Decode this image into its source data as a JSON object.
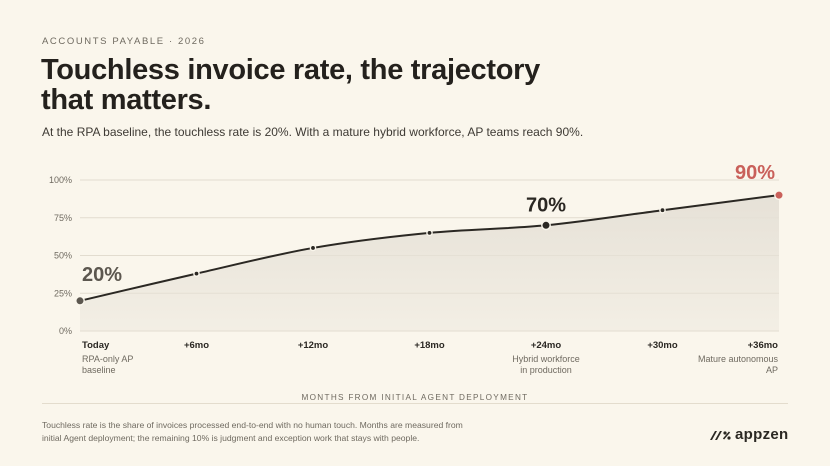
{
  "eyebrow": "ACCOUNTS PAYABLE · 2026",
  "title": "Touchless invoice rate, the trajectory that matters.",
  "subtitle": "At the RPA baseline, the touchless rate is 20%. With a mature hybrid workforce, AP teams reach 90%.",
  "footnote": "Touchless rate is the share of invoices processed end-to-end with no human touch. Months are measured from initial Agent deployment; the remaining 10% is judgment and exception work that stays with people.",
  "logo": {
    "text": "appzen",
    "icon": "appzen-mark-icon"
  },
  "colors": {
    "line": "#2b2823",
    "accent": "#c9605a",
    "callout": "#5c574f",
    "area": "#e6e1d7",
    "grid": "#e2dccf"
  },
  "chart_data": {
    "type": "line",
    "xlabel": "MONTHS FROM INITIAL AGENT DEPLOYMENT",
    "ylabel": "",
    "ylim": [
      0,
      100
    ],
    "yticks": [
      0,
      25,
      50,
      75,
      100
    ],
    "ytick_labels": [
      "0%",
      "25%",
      "50%",
      "75%",
      "100%"
    ],
    "x": [
      0,
      6,
      12,
      18,
      24,
      30,
      36
    ],
    "x_tick_labels": [
      "Today",
      "+6mo",
      "+12mo",
      "+18mo",
      "+24mo",
      "+30mo",
      "+36mo"
    ],
    "x_sublabels": [
      "RPA-only AP\nbaseline",
      "",
      "",
      "",
      "Hybrid workforce\nin production",
      "",
      "Mature autonomous\nAP"
    ],
    "grid": true,
    "series": [
      {
        "values": [
          20,
          38,
          55,
          65,
          70,
          80,
          90
        ]
      }
    ],
    "callouts": [
      {
        "index": 0,
        "label": "20%"
      },
      {
        "index": 4,
        "label": "70%"
      },
      {
        "index": 6,
        "label": "90%"
      }
    ]
  }
}
